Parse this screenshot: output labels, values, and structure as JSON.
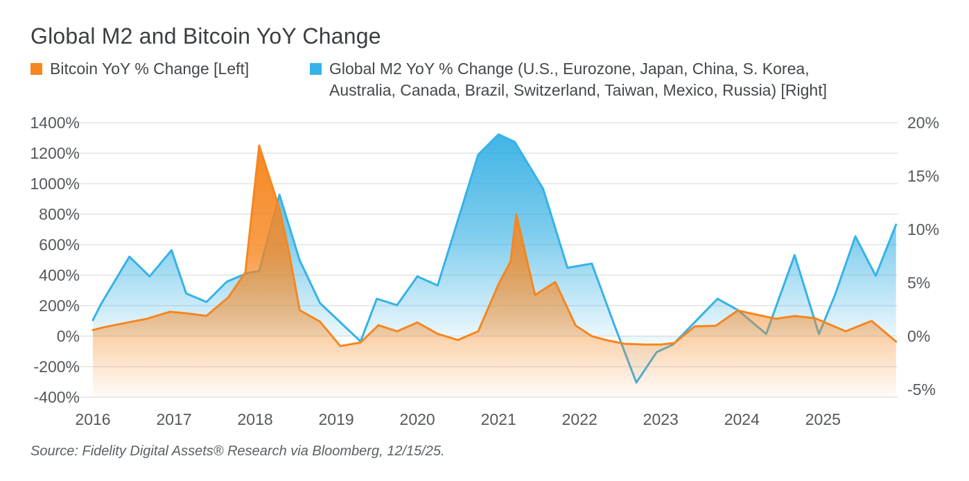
{
  "header": {
    "title": "Global M2 and Bitcoin YoY Change"
  },
  "legend": {
    "bitcoin": {
      "label": "Bitcoin YoY % Change [Left]",
      "color": "#F6861F"
    },
    "m2": {
      "line1": "Global M2 YoY % Change (U.S., Eurozone, Japan, China, S. Korea,",
      "line2": "Australia, Canada, Brazil, Switzerland, Taiwan, Mexico, Russia) [Right]",
      "color": "#35B2E8"
    }
  },
  "source": "Source: Fidelity Digital Assets® Research via Bloomberg, 12/15/25.",
  "chart_data": {
    "type": "area",
    "title": "Global M2 and Bitcoin YoY Change",
    "grid": true,
    "legend_position": "top",
    "x_axis": {
      "labels": [
        "2016",
        "2017",
        "2018",
        "2019",
        "2020",
        "2021",
        "2022",
        "2023",
        "2024",
        "2025"
      ],
      "range": [
        2016,
        2025.92
      ]
    },
    "left_axis": {
      "name": "Bitcoin YoY % Change",
      "tick_labels": [
        "1400%",
        "1200%",
        "1000%",
        "800%",
        "600%",
        "400%",
        "200%",
        "0%",
        "-200%",
        "-400%"
      ],
      "tick_values": [
        1400,
        1200,
        1000,
        800,
        600,
        400,
        200,
        0,
        -200,
        -400
      ],
      "range": [
        -400,
        1400
      ]
    },
    "right_axis": {
      "name": "Global M2 YoY % Change",
      "tick_labels": [
        "20%",
        "15%",
        "10%",
        "5%",
        "0%",
        "-5%"
      ],
      "tick_values": [
        20,
        15,
        10,
        5,
        0,
        -5
      ],
      "range": [
        -5.7,
        20
      ]
    },
    "series": [
      {
        "name": "Global M2 YoY % Change (U.S., Eurozone, Japan, China, S. Korea, Australia, Canada, Brazil, Switzerland, Taiwan, Mexico, Russia)",
        "axis": "right",
        "color": "#35B2E8",
        "unit": "%",
        "points": [
          [
            2016.0,
            1.5
          ],
          [
            2016.1,
            3.0
          ],
          [
            2016.45,
            7.45
          ],
          [
            2016.7,
            5.6
          ],
          [
            2016.97,
            8.05
          ],
          [
            2017.15,
            4.0
          ],
          [
            2017.4,
            3.2
          ],
          [
            2017.65,
            5.1
          ],
          [
            2017.9,
            5.9
          ],
          [
            2018.05,
            6.1
          ],
          [
            2018.3,
            13.25
          ],
          [
            2018.55,
            7.1
          ],
          [
            2018.8,
            3.1
          ],
          [
            2019.05,
            1.3
          ],
          [
            2019.3,
            -0.5
          ],
          [
            2019.5,
            3.5
          ],
          [
            2019.75,
            2.9
          ],
          [
            2020.0,
            5.6
          ],
          [
            2020.25,
            4.75
          ],
          [
            2020.75,
            17.0
          ],
          [
            2021.0,
            18.9
          ],
          [
            2021.2,
            18.2
          ],
          [
            2021.55,
            13.8
          ],
          [
            2021.85,
            6.4
          ],
          [
            2022.15,
            6.8
          ],
          [
            2022.42,
            1.2
          ],
          [
            2022.7,
            -4.35
          ],
          [
            2022.95,
            -1.5
          ],
          [
            2023.15,
            -0.8
          ],
          [
            2023.7,
            3.5
          ],
          [
            2023.95,
            2.45
          ],
          [
            2024.3,
            0.2
          ],
          [
            2024.65,
            7.6
          ],
          [
            2024.95,
            0.2
          ],
          [
            2025.15,
            3.9
          ],
          [
            2025.4,
            9.35
          ],
          [
            2025.65,
            5.65
          ],
          [
            2025.9,
            10.45
          ]
        ]
      },
      {
        "name": "Bitcoin YoY % Change",
        "axis": "left",
        "color": "#F6861F",
        "unit": "%",
        "points": [
          [
            2016.0,
            40
          ],
          [
            2016.15,
            60
          ],
          [
            2016.45,
            92
          ],
          [
            2016.65,
            112
          ],
          [
            2016.95,
            160
          ],
          [
            2017.15,
            150
          ],
          [
            2017.4,
            133
          ],
          [
            2017.67,
            255
          ],
          [
            2017.88,
            418
          ],
          [
            2018.05,
            1250
          ],
          [
            2018.3,
            835
          ],
          [
            2018.42,
            545
          ],
          [
            2018.55,
            170
          ],
          [
            2018.8,
            95
          ],
          [
            2019.05,
            -65
          ],
          [
            2019.3,
            -42
          ],
          [
            2019.52,
            72
          ],
          [
            2019.75,
            32
          ],
          [
            2020.0,
            90
          ],
          [
            2020.25,
            15
          ],
          [
            2020.5,
            -25
          ],
          [
            2020.75,
            32
          ],
          [
            2021.0,
            340
          ],
          [
            2021.15,
            490
          ],
          [
            2021.22,
            800
          ],
          [
            2021.45,
            270
          ],
          [
            2021.7,
            355
          ],
          [
            2021.95,
            70
          ],
          [
            2022.15,
            0
          ],
          [
            2022.32,
            -25
          ],
          [
            2022.55,
            -50
          ],
          [
            2022.8,
            -55
          ],
          [
            2023.0,
            -55
          ],
          [
            2023.17,
            -45
          ],
          [
            2023.42,
            64
          ],
          [
            2023.68,
            68
          ],
          [
            2023.95,
            168
          ],
          [
            2024.1,
            150
          ],
          [
            2024.42,
            114
          ],
          [
            2024.65,
            132
          ],
          [
            2024.9,
            118
          ],
          [
            2025.28,
            32
          ],
          [
            2025.6,
            100
          ],
          [
            2025.9,
            -36
          ]
        ]
      }
    ]
  }
}
